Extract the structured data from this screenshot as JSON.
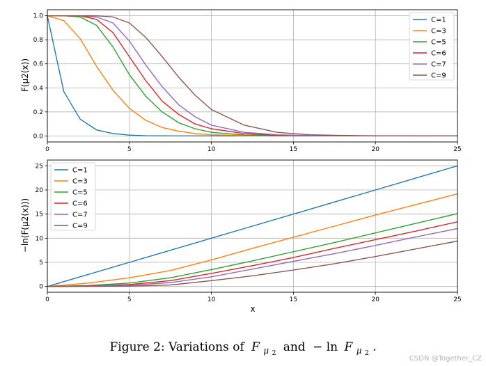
{
  "colors": {
    "C=1": "#1f77b4",
    "C=3": "#ff7f0e",
    "C=5": "#2ca02c",
    "C=6": "#d62728",
    "C=7": "#9467bd",
    "C=9": "#8c564b",
    "grid": "#b0b0b0"
  },
  "chart_data": [
    {
      "type": "line",
      "xlabel": "",
      "ylabel": "F(μ2(x))",
      "xlim": [
        0,
        25
      ],
      "ylim": [
        -0.05,
        1.05
      ],
      "xticks": [
        "0",
        "5",
        "10",
        "15",
        "20",
        "25"
      ],
      "yticks": [
        "0.0",
        "0.2",
        "0.4",
        "0.6",
        "0.8",
        "1.0"
      ],
      "grid": true,
      "legend_position": "top-right",
      "x": [
        0,
        1,
        2,
        3,
        4,
        5,
        6,
        7,
        8,
        9,
        10,
        12,
        14,
        16,
        18,
        20,
        25
      ],
      "series": [
        {
          "name": "C=1",
          "values": [
            1.0,
            0.37,
            0.14,
            0.05,
            0.02,
            0.007,
            0.002,
            0.001,
            0.0,
            0.0,
            0.0,
            0.0,
            0.0,
            0.0,
            0.0,
            0.0,
            0.0
          ]
        },
        {
          "name": "C=3",
          "values": [
            1.0,
            0.96,
            0.81,
            0.58,
            0.38,
            0.23,
            0.13,
            0.07,
            0.04,
            0.02,
            0.01,
            0.003,
            0.0,
            0.0,
            0.0,
            0.0,
            0.0
          ]
        },
        {
          "name": "C=5",
          "values": [
            1.0,
            1.0,
            0.99,
            0.92,
            0.74,
            0.51,
            0.33,
            0.2,
            0.11,
            0.06,
            0.03,
            0.008,
            0.002,
            0.0,
            0.0,
            0.0,
            0.0
          ]
        },
        {
          "name": "C=6",
          "values": [
            1.0,
            1.0,
            1.0,
            0.97,
            0.86,
            0.66,
            0.46,
            0.29,
            0.18,
            0.1,
            0.06,
            0.02,
            0.005,
            0.001,
            0.0,
            0.0,
            0.0
          ]
        },
        {
          "name": "C=7",
          "values": [
            1.0,
            1.0,
            1.0,
            0.99,
            0.94,
            0.79,
            0.59,
            0.41,
            0.26,
            0.16,
            0.09,
            0.03,
            0.01,
            0.003,
            0.001,
            0.0,
            0.0
          ]
        },
        {
          "name": "C=9",
          "values": [
            1.0,
            1.0,
            1.0,
            1.0,
            0.99,
            0.94,
            0.82,
            0.66,
            0.49,
            0.34,
            0.22,
            0.09,
            0.03,
            0.01,
            0.004,
            0.001,
            0.0
          ]
        }
      ]
    },
    {
      "type": "line",
      "xlabel": "x",
      "ylabel": "−ln(F(μ2(x)))",
      "xlim": [
        0,
        25
      ],
      "ylim": [
        -1.2,
        26.2
      ],
      "xticks": [
        "0",
        "5",
        "10",
        "15",
        "20",
        "25"
      ],
      "yticks": [
        "0",
        "5",
        "10",
        "15",
        "20",
        "25"
      ],
      "grid": true,
      "legend_position": "top-left",
      "x": [
        0,
        2.5,
        5,
        7.5,
        10,
        12.5,
        15,
        17.5,
        20,
        22.5,
        25
      ],
      "series": [
        {
          "name": "C=1",
          "values": [
            0,
            2.5,
            5,
            7.5,
            10,
            12.5,
            15,
            17.5,
            20,
            22.5,
            25
          ]
        },
        {
          "name": "C=3",
          "values": [
            0,
            0.7,
            1.8,
            3.3,
            5.5,
            7.9,
            10.2,
            12.5,
            14.8,
            17.0,
            19.2
          ]
        },
        {
          "name": "C=5",
          "values": [
            0,
            0.2,
            0.7,
            1.8,
            3.5,
            5.3,
            7.2,
            9.1,
            11.1,
            13.1,
            15.1
          ]
        },
        {
          "name": "C=6",
          "values": [
            0,
            0.1,
            0.4,
            1.2,
            2.7,
            4.3,
            6.0,
            7.9,
            9.7,
            11.5,
            13.4
          ]
        },
        {
          "name": "C=7",
          "values": [
            0,
            0.05,
            0.25,
            0.8,
            2.0,
            3.6,
            5.2,
            6.8,
            8.5,
            10.3,
            12.0
          ]
        },
        {
          "name": "C=9",
          "values": [
            0,
            0.01,
            0.06,
            0.3,
            1.2,
            2.2,
            3.4,
            4.7,
            6.2,
            7.8,
            9.4
          ]
        }
      ]
    }
  ],
  "caption": {
    "prefix": "Figure 2: Variations of",
    "f_symbol": "F",
    "mu_symbol": "μ",
    "sub_index": "2",
    "conjunction": "and",
    "neg_ln": "− ln",
    "period": "."
  },
  "watermark": "CSDN @Together_CZ"
}
